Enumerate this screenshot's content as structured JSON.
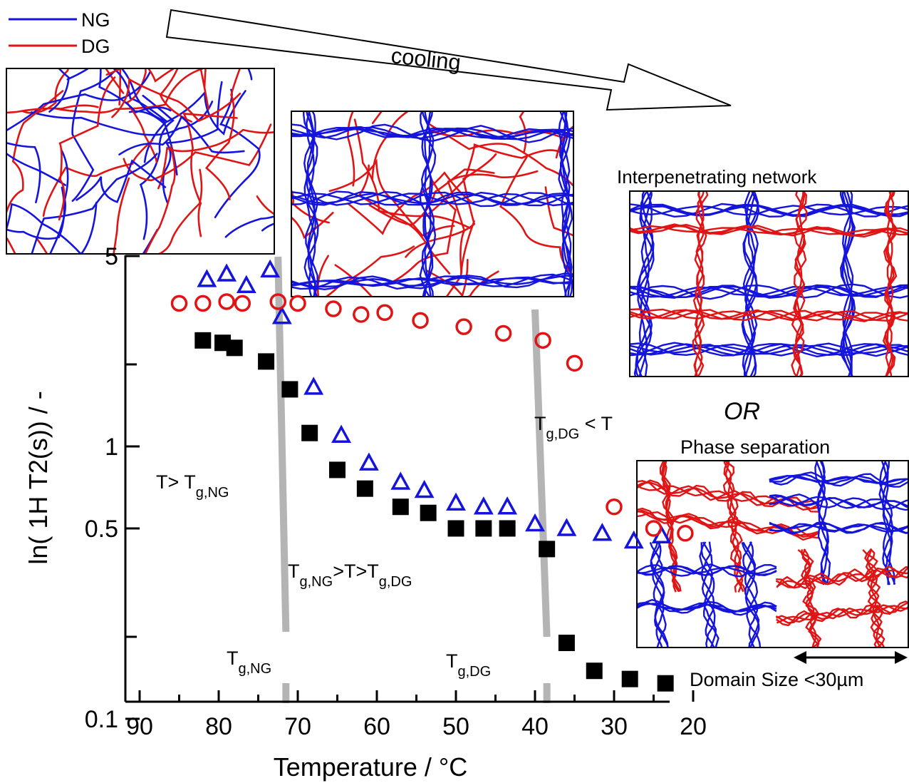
{
  "chart_data": {
    "type": "scatter",
    "xlabel": "Temperature / °C",
    "ylabel": "ln( 1H T2(s)) / -",
    "y_scale": "log",
    "xlim": [
      93,
      12
    ],
    "ylim": [
      0.1,
      6
    ],
    "x_ticks": [
      90,
      80,
      70,
      60,
      50,
      40,
      30,
      20
    ],
    "y_tick_labels": [
      {
        "value": 5,
        "label": "5"
      },
      {
        "value": 1,
        "label": "1"
      },
      {
        "value": 0.5,
        "label": "0.5"
      },
      {
        "value": 0.1,
        "label": "0.1"
      }
    ],
    "y_minor_ticks": [
      2,
      0.2
    ],
    "series": [
      {
        "marker": "filled-square",
        "color": "#000000",
        "points": [
          [
            82,
            2.45
          ],
          [
            79.5,
            2.4
          ],
          [
            78,
            2.3
          ],
          [
            74,
            2.05
          ],
          [
            71,
            1.62
          ],
          [
            68.5,
            1.12
          ],
          [
            65,
            0.82
          ],
          [
            61.5,
            0.7
          ],
          [
            57,
            0.6
          ],
          [
            53.5,
            0.57
          ],
          [
            50,
            0.5
          ],
          [
            46.5,
            0.5
          ],
          [
            43.5,
            0.5
          ],
          [
            38.5,
            0.42
          ],
          [
            36,
            0.19
          ],
          [
            32.5,
            0.15
          ],
          [
            28,
            0.14
          ],
          [
            23.5,
            0.135
          ]
        ]
      },
      {
        "marker": "open-triangle",
        "color": "#1414dc",
        "points": [
          [
            81.5,
            4.1
          ],
          [
            79,
            4.3
          ],
          [
            76.5,
            3.9
          ],
          [
            73.5,
            4.45
          ],
          [
            72,
            3.0
          ],
          [
            68,
            1.65
          ],
          [
            64.5,
            1.1
          ],
          [
            61,
            0.87
          ],
          [
            57,
            0.74
          ],
          [
            54,
            0.69
          ],
          [
            50,
            0.62
          ],
          [
            46.5,
            0.6
          ],
          [
            43.5,
            0.6
          ],
          [
            40,
            0.52
          ],
          [
            36,
            0.5
          ],
          [
            31.5,
            0.48
          ],
          [
            27.5,
            0.45
          ],
          [
            24,
            0.47
          ]
        ]
      },
      {
        "marker": "open-circle",
        "color": "#e01414",
        "points": [
          [
            85,
            3.35
          ],
          [
            82,
            3.35
          ],
          [
            79,
            3.4
          ],
          [
            77,
            3.35
          ],
          [
            72.5,
            3.4
          ],
          [
            70,
            3.35
          ],
          [
            65.5,
            3.2
          ],
          [
            62,
            3.05
          ],
          [
            59,
            3.1
          ],
          [
            54.5,
            2.9
          ],
          [
            49,
            2.75
          ],
          [
            44,
            2.6
          ],
          [
            39,
            2.45
          ],
          [
            35,
            2.02
          ],
          [
            30,
            0.6
          ],
          [
            25,
            0.5
          ],
          [
            21,
            0.48
          ]
        ]
      }
    ],
    "vertical_bands": [
      {
        "x_top": 72.5,
        "x_bottom": 71.5
      },
      {
        "x_top": 40,
        "x_bottom": 38.5
      }
    ],
    "annotations": {
      "above_ng": "T> T",
      "above_ng_sub": "g,NG",
      "between_a": "T",
      "between_a_sub": "g,NG",
      "between_mid": ">T>T",
      "between_b_sub": "g,DG",
      "below_dg_a": "T",
      "below_dg_sub": "g,DG",
      "below_dg_b": " < T",
      "tg_ng": "T",
      "tg_ng_sub": "g,NG",
      "tg_dg": "T",
      "tg_dg_sub": "g,DG"
    }
  },
  "legend": {
    "items": [
      {
        "label": "NG",
        "color": "#1414dc"
      },
      {
        "label": "DG",
        "color": "#e01414"
      }
    ]
  },
  "diagram": {
    "arrow_label": "cooling",
    "network_title": "Interpenetrating network",
    "or_text": "OR",
    "phase_title": "Phase separation",
    "domain_label": "Domain Size <30µm"
  },
  "colors": {
    "ng": "#1414dc",
    "dg": "#e01414",
    "band": "#b4b4b4"
  }
}
